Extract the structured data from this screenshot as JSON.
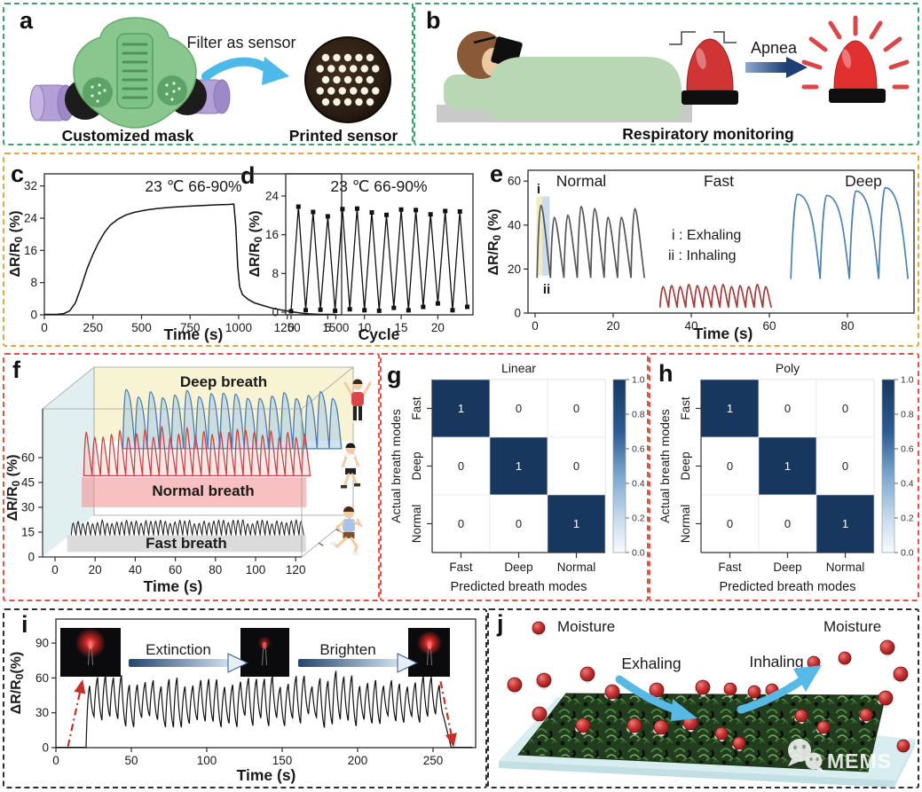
{
  "colors": {
    "row1_border": "#3fa06b",
    "row2_border": "#dfa845",
    "row3_border": "#df5347",
    "row4_border": "#2e2e2e",
    "heatmap_navy": "#17375e",
    "normal_breath": "#565656",
    "fast_breath": "#a03c3c",
    "deep_breath": "#4f81ad",
    "blue_arrow": "#4cb9e9",
    "mask_green": "#89c78f",
    "filter_purple": "#b3a0d6",
    "alarm_red": "#d13434",
    "bed_green": "#b9d7b4",
    "red_annotation": "#c23428"
  },
  "panel_letters": {
    "a": "a",
    "b": "b",
    "c": "c",
    "d": "d",
    "e": "e",
    "f": "f",
    "g": "g",
    "h": "h",
    "i": "i",
    "j": "j"
  },
  "panels": {
    "a": {
      "arrow_label": "Filter as sensor",
      "captions": [
        "Customized mask",
        "Printed sensor"
      ]
    },
    "b": {
      "apnea": "Apnea",
      "caption": "Respiratory monitoring"
    },
    "j": {
      "moisture_left": "Moisture",
      "moisture_right": "Moisture",
      "exhaling": "Exhaling",
      "inhaling": "Inhaling",
      "watermark": "MEMS",
      "molecules": [
        [
          57,
          20,
          7
        ],
        [
          30,
          84,
          8
        ],
        [
          63,
          79,
          8
        ],
        [
          112,
          72,
          8
        ],
        [
          140,
          92,
          8
        ],
        [
          190,
          90,
          8
        ],
        [
          242,
          87,
          8
        ],
        [
          273,
          89,
          7
        ],
        [
          300,
          92,
          7
        ],
        [
          320,
          90,
          7
        ],
        [
          367,
          59,
          7
        ],
        [
          402,
          54,
          7
        ],
        [
          450,
          42,
          8
        ],
        [
          465,
          72,
          8
        ],
        [
          448,
          99,
          8
        ],
        [
          58,
          117,
          8
        ],
        [
          107,
          130,
          8
        ],
        [
          165,
          130,
          8
        ],
        [
          195,
          132,
          8
        ],
        [
          228,
          127,
          8
        ],
        [
          263,
          139,
          7
        ],
        [
          283,
          150,
          7
        ],
        [
          353,
          119,
          7
        ],
        [
          378,
          132,
          7
        ],
        [
          426,
          118,
          7
        ],
        [
          468,
          153,
          7
        ]
      ]
    }
  },
  "chart_data": [
    {
      "id": "c",
      "type": "line",
      "annotation": "23 ℃ 66-90%",
      "xlabel": "Time (s)",
      "ylabel": "ΔR/R0 (%)",
      "xticks": [
        0,
        250,
        500,
        750,
        1000,
        1250,
        1500
      ],
      "yticks": [
        0,
        8,
        16,
        24,
        32
      ],
      "xlim": [
        0,
        1530
      ],
      "ylim": [
        0,
        35
      ],
      "points": [
        [
          0,
          0.1
        ],
        [
          60,
          0.1
        ],
        [
          100,
          0.3
        ],
        [
          130,
          1
        ],
        [
          160,
          3
        ],
        [
          190,
          7
        ],
        [
          220,
          11.5
        ],
        [
          250,
          15
        ],
        [
          280,
          18
        ],
        [
          310,
          20.5
        ],
        [
          340,
          22.3
        ],
        [
          380,
          23.8
        ],
        [
          420,
          24.8
        ],
        [
          460,
          25.4
        ],
        [
          520,
          26
        ],
        [
          580,
          26.4
        ],
        [
          650,
          26.7
        ],
        [
          720,
          26.9
        ],
        [
          800,
          27.1
        ],
        [
          880,
          27.3
        ],
        [
          950,
          27.4
        ],
        [
          975,
          27.5
        ],
        [
          985,
          22
        ],
        [
          995,
          12
        ],
        [
          1005,
          7
        ],
        [
          1020,
          5
        ],
        [
          1050,
          3.8
        ],
        [
          1080,
          3
        ],
        [
          1120,
          2.4
        ],
        [
          1170,
          1.7
        ],
        [
          1220,
          1.2
        ],
        [
          1280,
          0.7
        ],
        [
          1340,
          0.3
        ],
        [
          1420,
          0.1
        ],
        [
          1500,
          0.1
        ]
      ]
    },
    {
      "id": "d",
      "type": "line-marker",
      "annotation": "23 ℃ 66-90%",
      "xlabel": "Cycle",
      "ylabel": "ΔR/R0 (%)",
      "xticks": [
        0,
        5,
        10,
        15,
        20
      ],
      "yticks": [
        0,
        8,
        16,
        24
      ],
      "xlim": [
        0,
        24.3
      ],
      "ylim": [
        0,
        28
      ],
      "peaks": [
        21.8,
        20.7,
        19.8,
        21.3,
        21.4,
        20.6,
        20.1,
        21.2,
        21.1,
        20.2,
        20.9,
        20.8
      ],
      "valleys": [
        0.2,
        0.4,
        0.5,
        0.3,
        0.6,
        0.4,
        0.3,
        0.9,
        0.4,
        1.1,
        1.8,
        0.4,
        1.1
      ]
    },
    {
      "id": "e",
      "type": "line-multi",
      "xlabel": "Time (s)",
      "ylabel": "ΔR/R0 (%)",
      "xticks": [
        0,
        20,
        40,
        60,
        80
      ],
      "yticks": [
        0,
        20,
        40,
        60
      ],
      "section_labels": [
        "Normal",
        "Fast",
        "Deep"
      ],
      "legend": [
        "i : Exhaling",
        "ii : Inhaling"
      ],
      "marker_top": "i",
      "marker_bottom": "ii",
      "series": [
        {
          "name": "Normal",
          "color": "#565656",
          "x0": 0.5,
          "x1": 28,
          "valley": 16,
          "peaks": [
            49,
            43.5,
            44.5,
            48.5,
            47.5,
            43.5,
            43.5,
            47.5
          ]
        },
        {
          "name": "Fast",
          "color": "#a03c3c",
          "x0": 32,
          "x1": 60.5,
          "valley": 2.5,
          "peaks": [
            12,
            12.5,
            12,
            13,
            12.5,
            12,
            12.5,
            13,
            12,
            12.5,
            12,
            13,
            12
          ]
        },
        {
          "name": "Deep",
          "color": "#4f81ad",
          "x0": 65.5,
          "x1": 95.5,
          "valley": 15.5,
          "peaks": [
            54,
            53.5,
            55.5,
            57
          ]
        }
      ]
    },
    {
      "id": "f",
      "type": "line-3d",
      "xlabel": "Time (s)",
      "ylabel": "ΔR/R0 (%)",
      "xticks": [
        0,
        20,
        40,
        60,
        80,
        100,
        120
      ],
      "yticks": [
        0,
        15,
        30,
        45,
        60
      ],
      "series": [
        {
          "name": "Deep breath",
          "color": "#4a7cb0",
          "fill": "rgba(160,200,235,0.5)",
          "depth": 0.85,
          "x0": 12,
          "x1": 121,
          "valley": 44,
          "n": 18,
          "pk_lo": 74,
          "pk_hi": 80
        },
        {
          "name": "Normal breath",
          "color": "#c84444",
          "fill": "rgba(250,160,160,0.25)",
          "depth": 0.48,
          "x0": 2,
          "x1": 115,
          "valley": 37,
          "n": 27,
          "pk_lo": 60,
          "pk_hi": 67
        },
        {
          "name": "Fast breath",
          "color": "#1a1a1a",
          "fill": "none",
          "depth": 0.12,
          "x0": 5,
          "x1": 121,
          "valley": 10,
          "n": 48,
          "pk_lo": 17,
          "pk_hi": 19.5
        }
      ]
    },
    {
      "id": "g",
      "type": "heatmap",
      "title": "Linear",
      "xlabel": "Predicted breath modes",
      "ylabel": "Actual breath modes",
      "categories": [
        "Fast",
        "Deep",
        "Normal"
      ],
      "matrix": [
        [
          1,
          0,
          0
        ],
        [
          0,
          1,
          0
        ],
        [
          0,
          0,
          1
        ]
      ],
      "colorbar_ticks": [
        "1.0",
        "0.8",
        "0.6",
        "0.4",
        "0.2",
        "0.0"
      ]
    },
    {
      "id": "h",
      "type": "heatmap",
      "title": "Poly",
      "xlabel": "Predicted breath modes",
      "ylabel": "Actual breath modes",
      "categories": [
        "Fast",
        "Deep",
        "Normal"
      ],
      "matrix": [
        [
          1,
          0,
          0
        ],
        [
          0,
          1,
          0
        ],
        [
          0,
          0,
          1
        ]
      ],
      "colorbar_ticks": [
        "1.0",
        "0.8",
        "0.6",
        "0.4",
        "0.2",
        "0.0"
      ]
    },
    {
      "id": "i",
      "type": "line",
      "xlabel": "Time (s)",
      "ylabel": "ΔR/R0(%)",
      "xticks": [
        0,
        50,
        100,
        150,
        200,
        250
      ],
      "yticks": [
        0,
        30,
        60,
        90
      ],
      "arrow_labels": [
        "Extinction",
        "Brighten"
      ],
      "osc": {
        "t_start": 20,
        "t_end": 257,
        "cycles": 45,
        "peak_lo": 52,
        "peak_hi": 63,
        "valley_lo": 17,
        "valley_hi": 29
      },
      "red_arrows": [
        [
          8,
          1,
          17.5,
          57
        ],
        [
          255,
          57,
          263.5,
          2
        ]
      ]
    }
  ]
}
